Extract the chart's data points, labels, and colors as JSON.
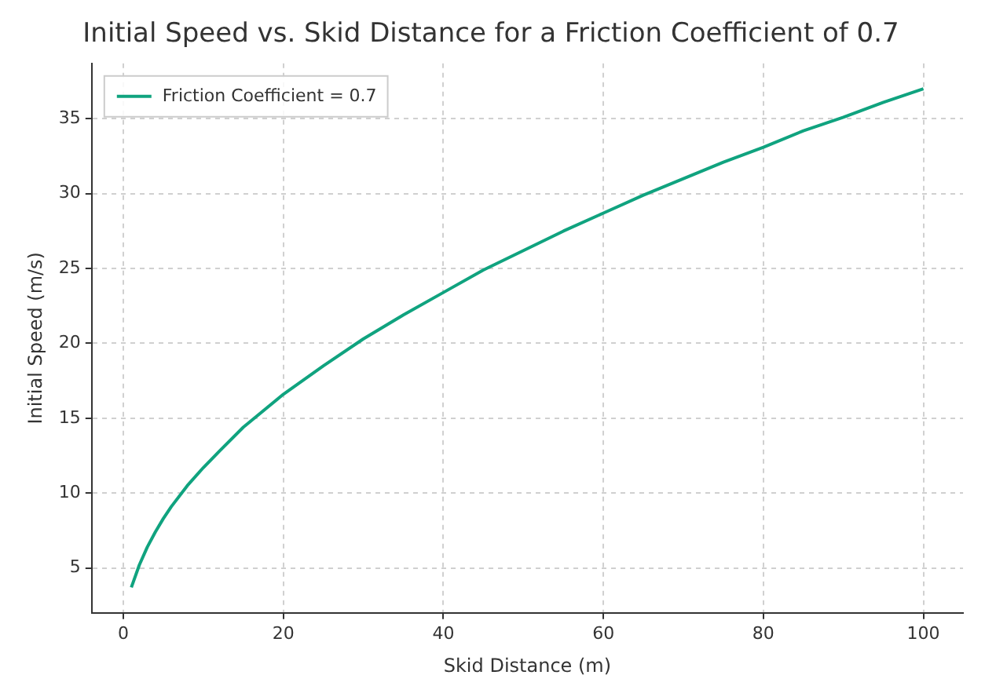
{
  "chart_data": {
    "type": "line",
    "title": "Initial Speed vs. Skid Distance for a Friction Coefficient of 0.7",
    "xlabel": "Skid Distance (m)",
    "ylabel": "Initial Speed (m/s)",
    "x": [
      1,
      2,
      3,
      4,
      5,
      6,
      8,
      10,
      12,
      15,
      20,
      25,
      30,
      35,
      40,
      45,
      50,
      55,
      60,
      65,
      70,
      75,
      80,
      85,
      90,
      95,
      100
    ],
    "series": [
      {
        "name": "Friction Coefficient = 0.7",
        "color": "#10a37f",
        "values": [
          3.7,
          5.2,
          6.4,
          7.4,
          8.3,
          9.1,
          10.5,
          11.7,
          12.8,
          14.4,
          16.6,
          18.5,
          20.3,
          21.9,
          23.4,
          24.9,
          26.2,
          27.5,
          28.7,
          29.9,
          31.0,
          32.1,
          33.1,
          34.2,
          35.1,
          36.1,
          37.0
        ]
      }
    ],
    "xlim": [
      -3.95,
      104.95
    ],
    "ylim": [
      2.0,
      38.7
    ],
    "xticks": [
      0,
      20,
      40,
      60,
      80,
      100
    ],
    "yticks": [
      5,
      10,
      15,
      20,
      25,
      30,
      35
    ],
    "grid": true,
    "legend": "top left",
    "marker": "none",
    "line_style": "solid"
  }
}
